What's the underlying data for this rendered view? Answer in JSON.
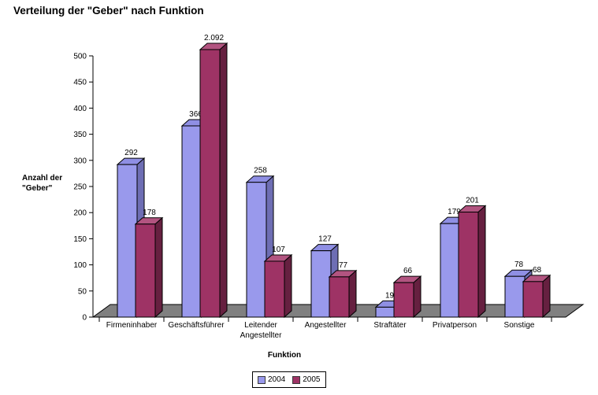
{
  "chart_data": {
    "type": "bar",
    "title": "Verteilung der \"Geber\" nach Funktion",
    "xlabel": "Funktion",
    "ylabel_lines": [
      "Anzahl der",
      "\"Geber\""
    ],
    "ylim": [
      0,
      500
    ],
    "ytick_step": 50,
    "grid": false,
    "legend_position": "bottom-center",
    "floor_color": "#808080",
    "axis_color": "#000000",
    "categories": [
      {
        "lines": [
          "Firmeninhaber"
        ]
      },
      {
        "lines": [
          "Geschäftsführer"
        ]
      },
      {
        "lines": [
          "Leitender",
          "Angestellter"
        ]
      },
      {
        "lines": [
          "Angestellter"
        ]
      },
      {
        "lines": [
          "Straftäter"
        ]
      },
      {
        "lines": [
          "Privatperson"
        ]
      },
      {
        "lines": [
          "Sonstige"
        ]
      }
    ],
    "series": [
      {
        "name": "2004",
        "values": [
          292,
          366,
          258,
          127,
          19,
          179,
          78
        ],
        "labels": [
          "292",
          "366",
          "258",
          "127",
          "19",
          "179",
          "78"
        ],
        "color_front": "#9999EC",
        "color_top": "#8F8FE4",
        "color_side": "#6E6EB4"
      },
      {
        "name": "2005",
        "values": [
          178,
          2092,
          107,
          77,
          66,
          201,
          68
        ],
        "labels": [
          "178",
          "2.092",
          "107",
          "77",
          "66",
          "201",
          "68"
        ],
        "color_front": "#9E3365",
        "color_top": "#B25480",
        "color_side": "#662040"
      }
    ]
  }
}
